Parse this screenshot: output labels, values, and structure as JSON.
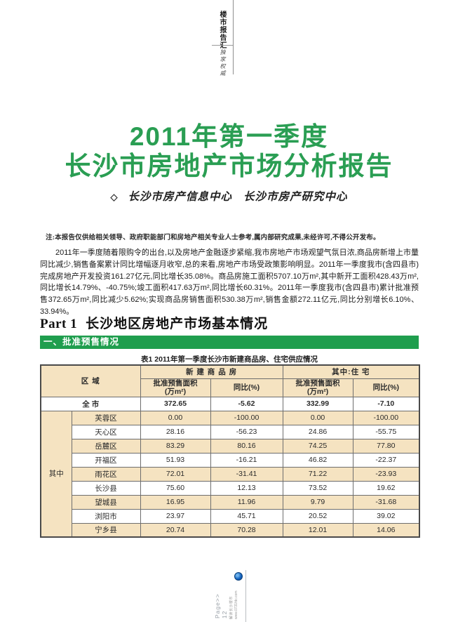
{
  "colors": {
    "accent_green": "#2a9e53",
    "banner_green": "#1f9e4e",
    "table_tan": "#f5e3c1"
  },
  "masthead": {
    "brand": "楼市报告汇",
    "tagline": "独家权威"
  },
  "title": {
    "line1": "2011年第一季度",
    "line2": "长沙市房地产市场分析报告",
    "byline_icon": "◇",
    "byline_org1": "长沙市房产信息中心",
    "byline_org2": "长沙市房产研究中心"
  },
  "note": "注:本报告仅供给相关领导、政府职能部门和房地产相关专业人士参考,属内部研究成果,未经许可,不得公开发布。",
  "intro": "2011年一季度随着限购令的出台,以及房地产金融逐步紧缩,我市房地产市场观望气氛日浓,商品房新增上市量同比减少,销售备案累计同比增幅逐月收窄,总的来看,房地产市场受政策影响明显。2011年一季度我市(含四县市)完成房地产开发投资161.27亿元,同比增长35.08%。商品房施工面积5707.10万m²,其中新开工面积428.43万m²,同比增长14.79%、-40.75%;竣工面积417.63万m²,同比增长60.31%。2011年一季度我市(含四县市)累计批准预售372.65万m²,同比减少5.62%;实现商品房销售面积530.38万m²,销售金额272.11亿元,同比分别增长6.10%、33.94%。",
  "part1": {
    "heading_en": "Part 1",
    "heading_cn": "长沙地区房地产市场基本情况"
  },
  "section1": {
    "banner": "一、批准预售情况"
  },
  "table1": {
    "title": "表1 2011年第一季度长沙市新建商品房、住宅供应情况",
    "header": {
      "area": "区 域",
      "group_commodity": "新 建 商 品 房",
      "group_residential": "其中:住  宅",
      "sub_presale": "批准预售面积\n(万m²)",
      "sub_yoy": "同比(%)"
    },
    "total_row": {
      "label": "全 市",
      "values": [
        "372.65",
        "-5.62",
        "332.99",
        "-7.10"
      ]
    },
    "span_label": "其中",
    "rows": [
      {
        "label": "芙蓉区",
        "values": [
          "0.00",
          "-100.00",
          "0.00",
          "-100.00"
        ]
      },
      {
        "label": "天心区",
        "values": [
          "28.16",
          "-56.23",
          "24.86",
          "-55.75"
        ]
      },
      {
        "label": "岳麓区",
        "values": [
          "83.29",
          "80.16",
          "74.25",
          "77.80"
        ]
      },
      {
        "label": "开福区",
        "values": [
          "51.93",
          "-16.21",
          "46.82",
          "-22.37"
        ]
      },
      {
        "label": "雨花区",
        "values": [
          "72.01",
          "-31.41",
          "71.22",
          "-23.93"
        ]
      },
      {
        "label": "长沙县",
        "values": [
          "75.60",
          "12.13",
          "73.52",
          "19.62"
        ]
      },
      {
        "label": "望城县",
        "values": [
          "16.95",
          "11.96",
          "9.79",
          "-31.68"
        ]
      },
      {
        "label": "浏阳市",
        "values": [
          "23.97",
          "45.71",
          "20.52",
          "39.02"
        ]
      },
      {
        "label": "宁乡县",
        "values": [
          "20.74",
          "70.28",
          "12.01",
          "14.06"
        ]
      }
    ]
  },
  "footer": {
    "page": "Page>> 12",
    "tagline_cn": "解读长沙楼市",
    "site": "www.0731fdc.com"
  }
}
